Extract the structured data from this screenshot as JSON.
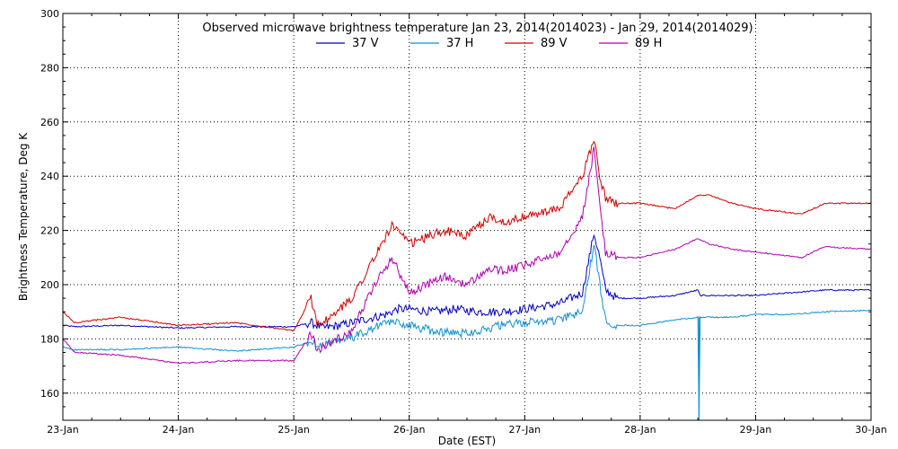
{
  "chart_data": {
    "type": "line",
    "title": "Observed microwave brightness temperature Jan 23, 2014(2014023) - Jan 29, 2014(2014029)",
    "xlabel": "Date (EST)",
    "ylabel": "Brightness Temperature, Deg K",
    "xlim": [
      "23-Jan",
      "30-Jan"
    ],
    "ylim": [
      150,
      300
    ],
    "x_tick_labels": [
      "23-Jan",
      "24-Jan",
      "25-Jan",
      "26-Jan",
      "27-Jan",
      "28-Jan",
      "29-Jan",
      "30-Jan"
    ],
    "y_tick_values": [
      160,
      180,
      200,
      220,
      240,
      260,
      280,
      300
    ],
    "grid": true,
    "legend_position": "top-center",
    "x_points_note": "x in days since 23-Jan 00:00 EST",
    "series": [
      {
        "name": "37 V",
        "color": "#0000c0",
        "x": [
          0,
          0.1,
          0.5,
          1.0,
          1.5,
          2.0,
          2.15,
          2.25,
          2.4,
          2.6,
          2.8,
          2.9,
          3.0,
          3.2,
          3.4,
          3.6,
          3.8,
          4.0,
          4.3,
          4.5,
          4.6,
          4.65,
          4.7,
          4.8,
          5.0,
          5.3,
          5.5,
          5.52,
          5.6,
          5.8,
          6.0,
          6.3,
          6.6,
          7.0
        ],
        "values": [
          185,
          184.5,
          185,
          184,
          184.5,
          184.5,
          186,
          184,
          185,
          187,
          189,
          191,
          191,
          190,
          191,
          190,
          190,
          191,
          193,
          197,
          219,
          210,
          198,
          195,
          195,
          196,
          198,
          196,
          196,
          196,
          196,
          197,
          198,
          198
        ]
      },
      {
        "name": "37 H",
        "color": "#1090d0",
        "x": [
          0,
          0.1,
          0.5,
          1.0,
          1.5,
          2.0,
          2.15,
          2.25,
          2.4,
          2.6,
          2.8,
          2.9,
          3.0,
          3.2,
          3.4,
          3.6,
          3.8,
          4.0,
          4.3,
          4.5,
          4.6,
          4.65,
          4.7,
          4.8,
          5.0,
          5.3,
          5.5,
          5.51,
          5.52,
          5.6,
          5.8,
          6.0,
          6.3,
          6.6,
          7.0
        ],
        "values": [
          177,
          176,
          176,
          177,
          175.5,
          177,
          179,
          178,
          179,
          182,
          186,
          186,
          185,
          183,
          182,
          183,
          185,
          186,
          187,
          190,
          215,
          200,
          187,
          185,
          185,
          187,
          188,
          150,
          188,
          188,
          188,
          189,
          189,
          190,
          190.5
        ]
      },
      {
        "name": "89 V",
        "color": "#d00000",
        "x": [
          0,
          0.1,
          0.5,
          1.0,
          1.5,
          2.0,
          2.15,
          2.2,
          2.3,
          2.5,
          2.7,
          2.85,
          3.0,
          3.3,
          3.5,
          3.7,
          3.8,
          4.0,
          4.3,
          4.5,
          4.6,
          4.65,
          4.7,
          4.8,
          5.0,
          5.3,
          5.5,
          5.6,
          5.8,
          6.0,
          6.4,
          6.6,
          7.0
        ],
        "values": [
          190,
          186,
          188,
          185,
          186,
          183,
          195,
          186,
          187,
          195,
          210,
          222,
          215,
          220,
          218,
          225,
          223,
          225,
          228,
          240,
          254,
          240,
          232,
          230,
          230,
          228,
          233,
          233,
          230,
          228,
          226,
          230,
          230
        ]
      },
      {
        "name": "89 H",
        "color": "#b000b0",
        "x": [
          0,
          0.1,
          0.5,
          1.0,
          1.5,
          2.0,
          2.15,
          2.2,
          2.3,
          2.5,
          2.7,
          2.85,
          3.0,
          3.3,
          3.5,
          3.7,
          3.8,
          4.0,
          4.3,
          4.5,
          4.6,
          4.65,
          4.7,
          4.8,
          5.0,
          5.3,
          5.5,
          5.6,
          5.8,
          6.0,
          6.4,
          6.6,
          7.0
        ],
        "values": [
          180,
          175,
          174,
          171,
          172,
          172,
          182,
          176,
          178,
          183,
          200,
          210,
          197,
          203,
          200,
          206,
          205,
          207,
          212,
          225,
          250,
          230,
          212,
          210,
          210,
          213,
          217,
          215,
          213,
          212,
          210,
          214,
          213
        ]
      }
    ]
  }
}
